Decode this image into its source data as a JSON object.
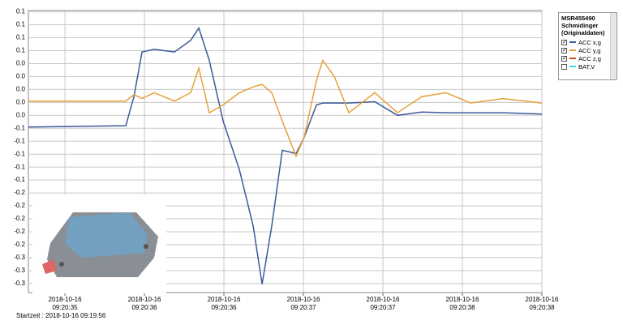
{
  "chart_data": {
    "type": "line",
    "legend_title": "MSR455490\nSchmidinger\n(Originaldaten)",
    "footer": "Startzeit : 2018-10-16 09:19:56",
    "x": [
      0.17,
      0.783,
      0.834,
      0.885,
      0.961,
      1.089,
      1.191,
      1.242,
      1.308,
      1.395,
      1.497,
      1.584,
      1.64,
      1.701,
      1.767,
      1.854,
      1.905,
      1.982,
      2.022,
      2.094,
      2.186,
      2.349,
      2.492,
      2.645,
      2.798,
      2.951,
      3.155,
      3.4
    ],
    "series": [
      {
        "name": "ACC x,g",
        "color": "#3b5a9a",
        "values": [
          -0.058,
          -0.056,
          -0.011,
          0.058,
          0.062,
          0.058,
          0.076,
          0.095,
          0.045,
          -0.049,
          -0.124,
          -0.211,
          -0.301,
          -0.211,
          -0.094,
          -0.099,
          -0.074,
          -0.024,
          -0.021,
          -0.021,
          -0.021,
          -0.019,
          -0.04,
          -0.035,
          -0.036,
          -0.036,
          -0.036,
          -0.038
        ]
      },
      {
        "name": "ACC y,g",
        "color": "#e8a03c",
        "values": [
          -0.018,
          -0.018,
          -0.008,
          -0.014,
          -0.005,
          -0.018,
          -0.005,
          0.033,
          -0.036,
          -0.024,
          -0.005,
          0.004,
          0.008,
          -0.005,
          -0.049,
          -0.103,
          -0.074,
          0.014,
          0.045,
          0.02,
          -0.036,
          -0.005,
          -0.036,
          -0.011,
          -0.005,
          -0.021,
          -0.014,
          -0.021
        ]
      }
    ],
    "legend": [
      {
        "name": "ACC x,g",
        "color": "#3b5a9a",
        "checked": true
      },
      {
        "name": "ACC y,g",
        "color": "#e8a03c",
        "checked": true
      },
      {
        "name": "ACC z,g",
        "color": "#c0501e",
        "checked": true
      },
      {
        "name": "BAT,V",
        "color": "#3cd4e8",
        "checked": false
      }
    ],
    "xlim": [
      0.17,
      3.4
    ],
    "xticks": [
      {
        "value": 0.4,
        "label": "2018-10-16\n09:20:35"
      },
      {
        "value": 0.9,
        "label": "2018-10-16\n09:20:36"
      },
      {
        "value": 1.4,
        "label": "2018-10-16\n09:20:36"
      },
      {
        "value": 1.9,
        "label": "2018-10-16\n09:20:37"
      },
      {
        "value": 2.4,
        "label": "2018-10-16\n09:20:37"
      },
      {
        "value": 2.9,
        "label": "2018-10-16\n09:20:38"
      },
      {
        "value": 3.4,
        "label": "2018-10-16\n09:20:38"
      }
    ],
    "ylim": [
      -0.314,
      0.122
    ],
    "yticks": [
      {
        "value": 0.12,
        "label": "0.1"
      },
      {
        "value": 0.1,
        "label": "0.1"
      },
      {
        "value": 0.08,
        "label": "0.1"
      },
      {
        "value": 0.06,
        "label": "0.1"
      },
      {
        "value": 0.04,
        "label": "0.0"
      },
      {
        "value": 0.02,
        "label": "0.0"
      },
      {
        "value": 0,
        "label": "0.0"
      },
      {
        "value": -0.02,
        "label": "0.0"
      },
      {
        "value": -0.04,
        "label": "0.0"
      },
      {
        "value": -0.06,
        "label": "-0.1"
      },
      {
        "value": -0.08,
        "label": "-0.1"
      },
      {
        "value": -0.1,
        "label": "-0.1"
      },
      {
        "value": -0.12,
        "label": "-0.1"
      },
      {
        "value": -0.14,
        "label": "-0.1"
      },
      {
        "value": -0.16,
        "label": "-0.2"
      },
      {
        "value": -0.18,
        "label": "-0.2"
      },
      {
        "value": -0.2,
        "label": "-0.2"
      },
      {
        "value": -0.22,
        "label": "-0.2"
      },
      {
        "value": -0.24,
        "label": "-0.2"
      },
      {
        "value": -0.26,
        "label": "-0.3"
      },
      {
        "value": -0.28,
        "label": "-0.3"
      },
      {
        "value": -0.3,
        "label": "-0.3"
      }
    ],
    "grid": true
  }
}
